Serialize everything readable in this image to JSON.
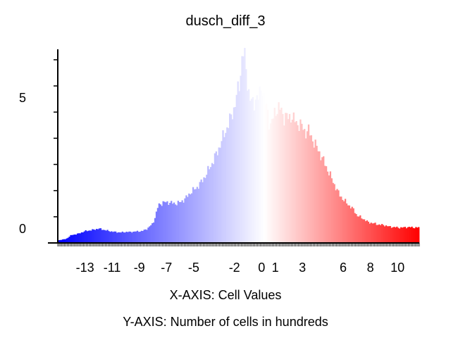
{
  "chart_data": {
    "type": "bar",
    "title": "dusch_diff_3",
    "xlabel": "X-AXIS: Cell Values",
    "ylabel": "Y-AXIS: Number of cells in hundreds",
    "x_tick_labels": [
      "-13",
      "-11",
      "-9",
      "-7",
      "-5",
      "-2",
      "0",
      "1",
      "3",
      "6",
      "8",
      "10"
    ],
    "x_tick_values": [
      -13,
      -11,
      -9,
      -7,
      -5,
      -2,
      0,
      1,
      3,
      6,
      8,
      10
    ],
    "y_tick_labels": [
      "0",
      "5"
    ],
    "y_tick_values": [
      0,
      5
    ],
    "xlim": [
      -15,
      11.6
    ],
    "ylim": [
      0,
      7.4
    ],
    "color_scale": {
      "low": "#0000ff",
      "mid": "#ffffff",
      "high": "#ff0000"
    },
    "grid": false,
    "profile_x": [
      -15,
      -14.4,
      -14,
      -13.5,
      -13,
      -12.4,
      -12,
      -11.6,
      -11.2,
      -10.8,
      -10.4,
      -10,
      -9.6,
      -9.2,
      -8.8,
      -8.4,
      -8,
      -7.8,
      -7.6,
      -7.2,
      -6.8,
      -6.4,
      -6,
      -5.6,
      -5.2,
      -4.8,
      -4.4,
      -4,
      -3.6,
      -3.2,
      -2.8,
      -2.4,
      -2,
      -1.6,
      -1.4,
      -1.2,
      -1,
      -0.8,
      -0.6,
      -0.4,
      -0.2,
      0,
      0.2,
      0.4,
      0.6,
      0.8,
      1,
      1.2,
      1.4,
      1.6,
      1.8,
      2,
      2.2,
      2.4,
      2.6,
      2.8,
      3,
      3.2,
      3.4,
      3.6,
      3.8,
      4,
      4.4,
      4.8,
      5.2,
      5.6,
      6,
      6.4,
      6.8,
      7,
      7.4,
      7.8,
      8.2,
      8.6,
      9,
      9.4,
      9.8,
      10.2,
      10.6,
      11,
      11.4,
      11.6
    ],
    "profile_y": [
      0.1,
      0.15,
      0.3,
      0.35,
      0.45,
      0.5,
      0.55,
      0.5,
      0.45,
      0.42,
      0.4,
      0.42,
      0.42,
      0.44,
      0.45,
      0.55,
      0.75,
      1.05,
      1.45,
      1.55,
      1.55,
      1.5,
      1.55,
      1.7,
      1.95,
      2.1,
      2.35,
      2.7,
      3.1,
      3.55,
      4.1,
      4.6,
      5.2,
      6.2,
      7.4,
      6.9,
      5.9,
      5.4,
      5.3,
      5.6,
      5.5,
      6.1,
      5.4,
      5.1,
      4.5,
      4.7,
      5.0,
      5.2,
      5.1,
      4.8,
      4.9,
      4.7,
      4.9,
      4.7,
      4.5,
      4.6,
      4.4,
      4.2,
      4.35,
      4.1,
      3.9,
      3.7,
      3.3,
      2.85,
      2.4,
      1.95,
      1.65,
      1.45,
      1.25,
      1.05,
      0.95,
      0.8,
      0.75,
      0.7,
      0.68,
      0.62,
      0.6,
      0.58,
      0.6,
      0.6,
      0.58,
      0.6
    ],
    "bin_width": 0.1
  }
}
